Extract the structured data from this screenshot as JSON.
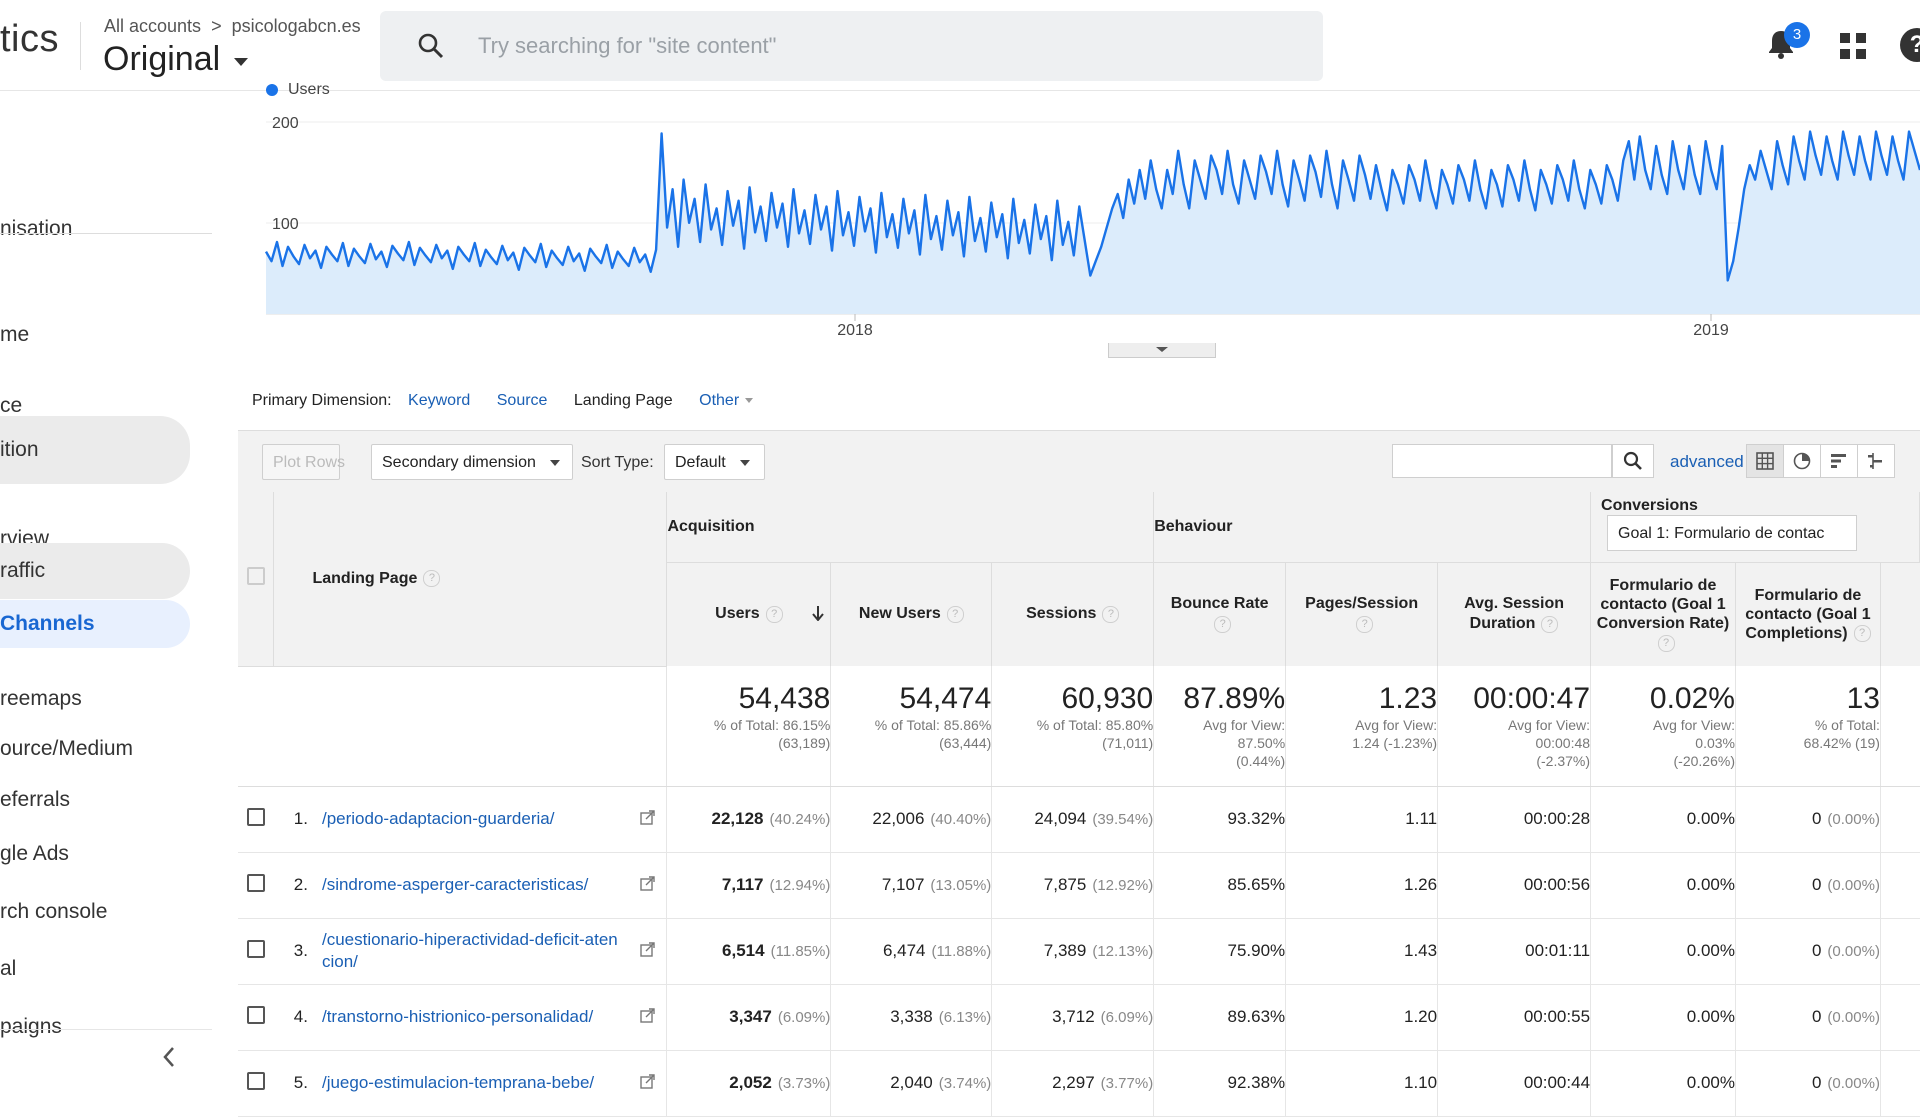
{
  "app": {
    "brand": "tics",
    "breadcrumb_account": "All accounts",
    "breadcrumb_property": "psicologabcn.es",
    "view": "Original"
  },
  "search": {
    "placeholder": "Try searching for \"site content\""
  },
  "notifications": {
    "count": "3"
  },
  "sidebar": {
    "items": [
      {
        "label": "nisation"
      },
      {
        "label": "me"
      },
      {
        "label": "ce"
      },
      {
        "label": "ition"
      },
      {
        "label": "rview"
      },
      {
        "label": "raffic"
      },
      {
        "label": "Channels"
      },
      {
        "label": "reemaps"
      },
      {
        "label": "ource/Medium"
      },
      {
        "label": "eferrals"
      },
      {
        "label": "gle Ads"
      },
      {
        "label": "rch console"
      },
      {
        "label": "al"
      },
      {
        "label": "paigns"
      }
    ]
  },
  "chart_data": {
    "type": "line",
    "series": [
      {
        "name": "Users",
        "color": "#1a73e8"
      }
    ],
    "y_ticks": [
      "200",
      "100"
    ],
    "x_ticks": [
      "2018",
      "2019"
    ],
    "ylim": [
      0,
      200
    ],
    "note_values": "daily users approx 40–190",
    "values": [
      65,
      55,
      75,
      50,
      70,
      60,
      52,
      72,
      58,
      66,
      48,
      70,
      62,
      55,
      74,
      50,
      68,
      60,
      53,
      73,
      57,
      65,
      49,
      71,
      63,
      56,
      75,
      51,
      69,
      61,
      54,
      72,
      58,
      66,
      47,
      70,
      62,
      55,
      74,
      50,
      67,
      59,
      52,
      71,
      56,
      64,
      46,
      69,
      61,
      54,
      73,
      49,
      66,
      58,
      51,
      70,
      55,
      63,
      45,
      68,
      60,
      53,
      72,
      48,
      65,
      57,
      50,
      69,
      54,
      62,
      44,
      67,
      188,
      90,
      130,
      70,
      140,
      95,
      120,
      75,
      135,
      88,
      110,
      72,
      128,
      92,
      118,
      68,
      132,
      85,
      112,
      76,
      126,
      90,
      115,
      70,
      130,
      84,
      108,
      73,
      124,
      88,
      112,
      66,
      128,
      82,
      106,
      71,
      122,
      86,
      110,
      64,
      126,
      80,
      104,
      69,
      120,
      84,
      108,
      62,
      124,
      78,
      102,
      67,
      118,
      82,
      106,
      60,
      122,
      76,
      100,
      65,
      116,
      80,
      104,
      58,
      120,
      74,
      98,
      63,
      114,
      78,
      102,
      56,
      118,
      72,
      96,
      61,
      112,
      76,
      40,
      55,
      70,
      90,
      110,
      125,
      100,
      140,
      115,
      150,
      120,
      160,
      130,
      110,
      150,
      125,
      170,
      135,
      110,
      160,
      140,
      120,
      165,
      150,
      125,
      170,
      135,
      115,
      160,
      140,
      120,
      165,
      148,
      125,
      170,
      135,
      112,
      160,
      140,
      118,
      165,
      148,
      122,
      170,
      135,
      110,
      160,
      140,
      118,
      165,
      145,
      120,
      155,
      130,
      108,
      150,
      135,
      115,
      155,
      140,
      118,
      160,
      130,
      110,
      150,
      135,
      115,
      155,
      140,
      118,
      160,
      130,
      110,
      150,
      135,
      112,
      155,
      140,
      118,
      160,
      130,
      108,
      150,
      135,
      115,
      155,
      140,
      118,
      160,
      130,
      110,
      150,
      135,
      115,
      155,
      140,
      118,
      160,
      180,
      140,
      185,
      150,
      130,
      175,
      145,
      125,
      180,
      150,
      130,
      175,
      145,
      125,
      180,
      150,
      130,
      175,
      35,
      55,
      90,
      130,
      155,
      140,
      170,
      150,
      130,
      180,
      155,
      135,
      185,
      160,
      140,
      190,
      165,
      145,
      185,
      160,
      140,
      190,
      165,
      145,
      185,
      160,
      140,
      190,
      165,
      145,
      185,
      160,
      140,
      190,
      170,
      150
    ]
  },
  "dimension_bar": {
    "label": "Primary Dimension:",
    "options": [
      "Keyword",
      "Source"
    ],
    "current": "Landing Page",
    "other": "Other"
  },
  "toolbar": {
    "plot_rows": "Plot Rows",
    "secondary": "Secondary dimension",
    "sort_label": "Sort Type:",
    "sort_value": "Default",
    "advanced": "advanced"
  },
  "table": {
    "groups": {
      "acquisition": "Acquisition",
      "behaviour": "Behaviour",
      "conversions": "Conversions",
      "goal": "Goal 1: Formulario de contac"
    },
    "columns": {
      "landing": "Landing Page",
      "users": "Users",
      "new_users": "New Users",
      "sessions": "Sessions",
      "bounce": "Bounce Rate",
      "pages": "Pages/Session",
      "duration": "Avg. Session Duration",
      "conv_rate": "Formulario de contacto (Goal 1 Conversion Rate)",
      "completions": "Formulario de contacto (Goal 1 Completions)"
    },
    "totals": {
      "users": "54,438",
      "users_sub1": "% of Total: 86.15%",
      "users_sub2": "(63,189)",
      "new_users": "54,474",
      "new_users_sub1": "% of Total: 85.86%",
      "new_users_sub2": "(63,444)",
      "sessions": "60,930",
      "sessions_sub1": "% of Total: 85.80%",
      "sessions_sub2": "(71,011)",
      "bounce": "87.89%",
      "bounce_sub1": "Avg for View:",
      "bounce_sub2": "87.50%",
      "bounce_sub3": "(0.44%)",
      "pages": "1.23",
      "pages_sub1": "Avg for View:",
      "pages_sub2": "1.24 (-1.23%)",
      "duration": "00:00:47",
      "duration_sub1": "Avg for View:",
      "duration_sub2": "00:00:48",
      "duration_sub3": "(-2.37%)",
      "conv": "0.02%",
      "conv_sub1": "Avg for View:",
      "conv_sub2": "0.03%",
      "conv_sub3": "(-20.26%)",
      "comp": "13",
      "comp_sub1": "% of Total:",
      "comp_sub2": "68.42% (19)"
    },
    "rows": [
      {
        "idx": "1.",
        "page": "/periodo-adaptacion-guarderia/",
        "users": "22,128",
        "users_pct": "(40.24%)",
        "new": "22,006",
        "new_pct": "(40.40%)",
        "sessions": "24,094",
        "sessions_pct": "(39.54%)",
        "bounce": "93.32%",
        "pages": "1.11",
        "duration": "00:00:28",
        "conv": "0.00%",
        "comp": "0",
        "comp_pct": "(0.00%)"
      },
      {
        "idx": "2.",
        "page": "/sindrome-asperger-caracteristicas/",
        "users": "7,117",
        "users_pct": "(12.94%)",
        "new": "7,107",
        "new_pct": "(13.05%)",
        "sessions": "7,875",
        "sessions_pct": "(12.92%)",
        "bounce": "85.65%",
        "pages": "1.26",
        "duration": "00:00:56",
        "conv": "0.00%",
        "comp": "0",
        "comp_pct": "(0.00%)"
      },
      {
        "idx": "3.",
        "page": "/cuestionario-hiperactividad-deficit-atencion/",
        "users": "6,514",
        "users_pct": "(11.85%)",
        "new": "6,474",
        "new_pct": "(11.88%)",
        "sessions": "7,389",
        "sessions_pct": "(12.13%)",
        "bounce": "75.90%",
        "pages": "1.43",
        "duration": "00:01:11",
        "conv": "0.00%",
        "comp": "0",
        "comp_pct": "(0.00%)"
      },
      {
        "idx": "4.",
        "page": "/transtorno-histrionico-personalidad/",
        "users": "3,347",
        "users_pct": "(6.09%)",
        "new": "3,338",
        "new_pct": "(6.13%)",
        "sessions": "3,712",
        "sessions_pct": "(6.09%)",
        "bounce": "89.63%",
        "pages": "1.20",
        "duration": "00:00:55",
        "conv": "0.00%",
        "comp": "0",
        "comp_pct": "(0.00%)"
      },
      {
        "idx": "5.",
        "page": "/juego-estimulacion-temprana-bebe/",
        "users": "2,052",
        "users_pct": "(3.73%)",
        "new": "2,040",
        "new_pct": "(3.74%)",
        "sessions": "2,297",
        "sessions_pct": "(3.77%)",
        "bounce": "92.38%",
        "pages": "1.10",
        "duration": "00:00:44",
        "conv": "0.00%",
        "comp": "0",
        "comp_pct": "(0.00%)"
      }
    ]
  }
}
